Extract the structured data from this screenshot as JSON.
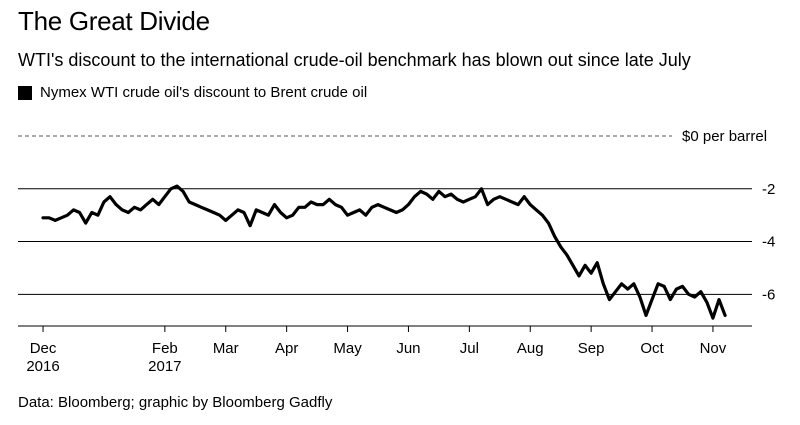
{
  "title": "The Great Divide",
  "subtitle": "WTI's discount to the international crude-oil benchmark has blown out since late July",
  "source": "Data: Bloomberg; graphic by Bloomberg Gadfly",
  "chart_data": {
    "type": "line",
    "ylim": [
      -7.2,
      0
    ],
    "y_ticks": [
      {
        "value": 0,
        "label": "$0 per barrel",
        "style": "dashed"
      },
      {
        "value": -2,
        "label": "-2",
        "style": "solid"
      },
      {
        "value": -4,
        "label": "-4",
        "style": "solid"
      },
      {
        "value": -6,
        "label": "-6",
        "style": "solid"
      }
    ],
    "x_ticks": [
      {
        "month": 0,
        "label": "Dec",
        "label2": "2016"
      },
      {
        "month": 2,
        "label": "Feb",
        "label2": "2017"
      },
      {
        "month": 3,
        "label": "Mar",
        "label2": ""
      },
      {
        "month": 4,
        "label": "Apr",
        "label2": ""
      },
      {
        "month": 5,
        "label": "May",
        "label2": ""
      },
      {
        "month": 6,
        "label": "Jun",
        "label2": ""
      },
      {
        "month": 7,
        "label": "Jul",
        "label2": ""
      },
      {
        "month": 8,
        "label": "Aug",
        "label2": ""
      },
      {
        "month": 9,
        "label": "Sep",
        "label2": ""
      },
      {
        "month": 10,
        "label": "Oct",
        "label2": ""
      },
      {
        "month": 11,
        "label": "Nov",
        "label2": ""
      }
    ],
    "x_range_months": [
      -0.05,
      11.28
    ],
    "series": [
      {
        "name": "Nymex WTI crude oil's discount to Brent crude oil",
        "color": "#000000",
        "x_months": [
          0.0,
          0.1,
          0.2,
          0.3,
          0.4,
          0.5,
          0.6,
          0.7,
          0.8,
          0.9,
          1.0,
          1.1,
          1.2,
          1.3,
          1.4,
          1.5,
          1.6,
          1.7,
          1.8,
          1.9,
          2.0,
          2.1,
          2.2,
          2.3,
          2.4,
          2.5,
          2.6,
          2.7,
          2.8,
          2.9,
          3.0,
          3.1,
          3.2,
          3.3,
          3.4,
          3.5,
          3.6,
          3.7,
          3.8,
          3.9,
          4.0,
          4.1,
          4.2,
          4.3,
          4.4,
          4.5,
          4.6,
          4.7,
          4.8,
          4.9,
          5.0,
          5.1,
          5.2,
          5.3,
          5.4,
          5.5,
          5.6,
          5.7,
          5.8,
          5.9,
          6.0,
          6.1,
          6.2,
          6.3,
          6.4,
          6.5,
          6.6,
          6.7,
          6.8,
          6.9,
          7.0,
          7.1,
          7.2,
          7.3,
          7.4,
          7.5,
          7.6,
          7.7,
          7.8,
          7.9,
          8.0,
          8.1,
          8.2,
          8.3,
          8.4,
          8.5,
          8.6,
          8.7,
          8.8,
          8.9,
          9.0,
          9.1,
          9.2,
          9.3,
          9.4,
          9.5,
          9.6,
          9.7,
          9.8,
          9.9,
          10.0,
          10.1,
          10.2,
          10.3,
          10.4,
          10.5,
          10.6,
          10.7,
          10.8,
          10.9,
          11.0,
          11.1,
          11.2
        ],
        "values": [
          -3.1,
          -3.1,
          -3.2,
          -3.1,
          -3.0,
          -2.8,
          -2.9,
          -3.3,
          -2.9,
          -3.0,
          -2.5,
          -2.3,
          -2.6,
          -2.8,
          -2.9,
          -2.7,
          -2.8,
          -2.6,
          -2.4,
          -2.6,
          -2.3,
          -2.0,
          -1.9,
          -2.1,
          -2.5,
          -2.6,
          -2.7,
          -2.8,
          -2.9,
          -3.0,
          -3.2,
          -3.0,
          -2.8,
          -2.9,
          -3.4,
          -2.8,
          -2.9,
          -3.0,
          -2.6,
          -2.9,
          -3.1,
          -3.0,
          -2.7,
          -2.7,
          -2.5,
          -2.6,
          -2.6,
          -2.4,
          -2.6,
          -2.7,
          -3.0,
          -2.9,
          -2.8,
          -3.0,
          -2.7,
          -2.6,
          -2.7,
          -2.8,
          -2.9,
          -2.8,
          -2.6,
          -2.3,
          -2.1,
          -2.2,
          -2.4,
          -2.1,
          -2.3,
          -2.2,
          -2.4,
          -2.5,
          -2.4,
          -2.3,
          -2.0,
          -2.6,
          -2.4,
          -2.3,
          -2.4,
          -2.5,
          -2.6,
          -2.3,
          -2.6,
          -2.8,
          -3.0,
          -3.3,
          -3.8,
          -4.2,
          -4.5,
          -4.9,
          -5.3,
          -4.9,
          -5.2,
          -4.8,
          -5.6,
          -6.2,
          -5.9,
          -5.6,
          -5.8,
          -5.6,
          -6.1,
          -6.8,
          -6.2,
          -5.6,
          -5.7,
          -6.2,
          -5.8,
          -5.7,
          -6.0,
          -6.1,
          -5.9,
          -6.3,
          -6.9,
          -6.2,
          -6.8
        ]
      }
    ]
  }
}
